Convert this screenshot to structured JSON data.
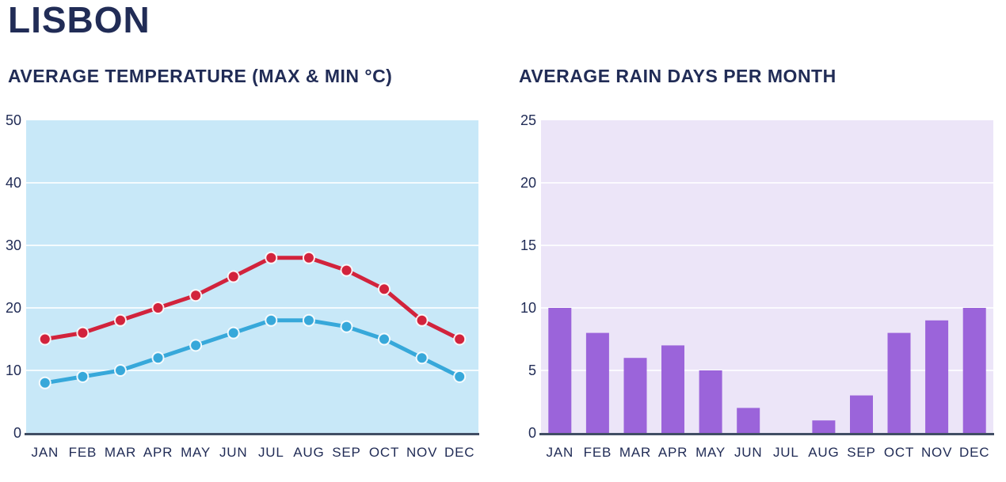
{
  "page_title": "LISBON",
  "colors": {
    "heading": "#212c56",
    "tick_label": "#212c56",
    "axis_line": "#414e64",
    "gridline": "#ffffff",
    "background": "#ffffff",
    "temp_max_line": "#d2233c",
    "temp_min_line": "#37a8da",
    "temp_plot_bg": "#c8e8f8",
    "rain_bar": "#9b64da",
    "rain_plot_bg": "#ece5f8"
  },
  "chart_data": [
    {
      "type": "line",
      "title": "AVERAGE TEMPERATURE (MAX & MIN °C)",
      "categories": [
        "JAN",
        "FEB",
        "MAR",
        "APR",
        "MAY",
        "JUN",
        "JUL",
        "AUG",
        "SEP",
        "OCT",
        "NOV",
        "DEC"
      ],
      "series": [
        {
          "name": "max",
          "color": "#d2233c",
          "values": [
            15,
            16,
            18,
            20,
            22,
            25,
            28,
            28,
            26,
            23,
            18,
            15
          ]
        },
        {
          "name": "min",
          "color": "#37a8da",
          "values": [
            8,
            9,
            10,
            12,
            14,
            16,
            18,
            18,
            17,
            15,
            12,
            9
          ]
        }
      ],
      "ylim": [
        0,
        50
      ],
      "yticks": [
        0,
        10,
        20,
        30,
        40,
        50
      ],
      "grid": true,
      "legend": "none",
      "plot_bg": "#c8e8f8"
    },
    {
      "type": "bar",
      "title": "AVERAGE RAIN DAYS PER MONTH",
      "categories": [
        "JAN",
        "FEB",
        "MAR",
        "APR",
        "MAY",
        "JUN",
        "JUL",
        "AUG",
        "SEP",
        "OCT",
        "NOV",
        "DEC"
      ],
      "values": [
        10,
        8,
        6,
        7,
        5,
        2,
        0,
        1,
        3,
        8,
        9,
        10
      ],
      "ylim": [
        0,
        25
      ],
      "yticks": [
        0,
        5,
        10,
        15,
        20,
        25
      ],
      "grid": true,
      "legend": "none",
      "plot_bg": "#ece5f8",
      "bar_color": "#9b64da"
    }
  ]
}
